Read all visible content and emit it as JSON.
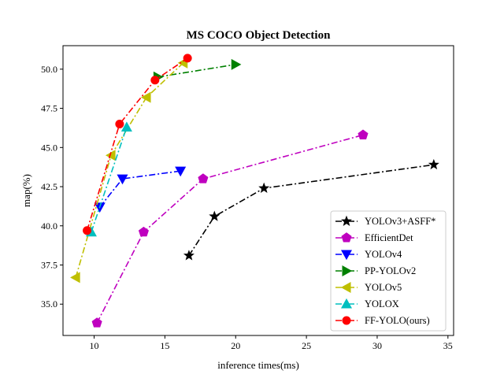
{
  "chart_data": {
    "type": "line",
    "title": "MS COCO Object Detection",
    "xlabel": "inference times(ms)",
    "ylabel": "map(%)",
    "xlim": [
      7.8,
      35.4
    ],
    "ylim": [
      33.0,
      51.5
    ],
    "xticks": [
      10,
      15,
      20,
      25,
      30,
      35
    ],
    "yticks": [
      35.0,
      37.5,
      40.0,
      42.5,
      45.0,
      47.5,
      50.0
    ],
    "xtick_labels": [
      "10",
      "15",
      "20",
      "25",
      "30",
      "35"
    ],
    "ytick_labels": [
      "35.0",
      "37.5",
      "40.0",
      "42.5",
      "45.0",
      "47.5",
      "50.0"
    ],
    "grid": false,
    "legend_position": "lower-right",
    "series": [
      {
        "name": "YOLOv3+ASFF*",
        "color": "#000000",
        "marker": "star",
        "x": [
          16.7,
          18.5,
          22.0,
          34.0
        ],
        "y": [
          38.1,
          40.6,
          42.4,
          43.9
        ]
      },
      {
        "name": "EfficientDet",
        "color": "#bf00bf",
        "marker": "pentagon",
        "x": [
          10.2,
          13.5,
          17.7,
          29.0
        ],
        "y": [
          33.8,
          39.6,
          43.0,
          45.8
        ]
      },
      {
        "name": "YOLOv4",
        "color": "#0000ff",
        "marker": "triangle-down",
        "x": [
          10.4,
          12.0,
          16.1
        ],
        "y": [
          41.2,
          43.0,
          43.5
        ]
      },
      {
        "name": "PP-YOLOv2",
        "color": "#008000",
        "marker": "triangle-right",
        "x": [
          14.5,
          20.0
        ],
        "y": [
          49.5,
          50.3
        ]
      },
      {
        "name": "YOLOv5",
        "color": "#bfbf00",
        "marker": "triangle-left",
        "x": [
          8.7,
          11.2,
          13.7,
          16.3
        ],
        "y": [
          36.7,
          44.5,
          48.2,
          50.4
        ]
      },
      {
        "name": "YOLOX",
        "color": "#00bfbf",
        "marker": "triangle-up",
        "x": [
          9.8,
          12.3
        ],
        "y": [
          39.6,
          46.3
        ]
      },
      {
        "name": "FF-YOLO(ours)",
        "color": "#ff0000",
        "marker": "circle",
        "x": [
          9.5,
          11.8,
          14.3,
          16.6
        ],
        "y": [
          39.7,
          46.5,
          49.3,
          50.7
        ]
      }
    ]
  }
}
